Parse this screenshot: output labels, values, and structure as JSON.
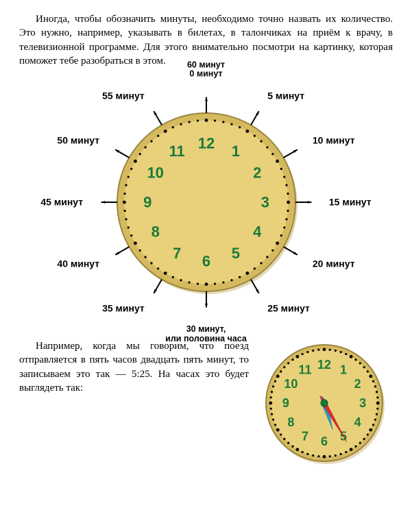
{
  "paragraph1": "Иногда, чтобы обозначить минуты, необходимо точно назвать их количество. Это нужно, например, указывать в билетах, в талончиках на приём к врачу, в телевизионной программе. Для этого внимательно посмотри на картинку, которая поможет тебе разобраться в этом.",
  "paragraph2": "Например, когда мы говорим, что поезд отправляется в пять часов двадцать пять минут, то записываем это так — 5:25. На часах это будет выглядеть так:",
  "clock_face": {
    "face_fill": "#e8d17a",
    "outer_ring": "#d4b95f",
    "border": "#9a8540",
    "shadow": "#c9b26a",
    "numeral_color": "#1a7a3a",
    "numeral_fontsize_large": 22,
    "numeral_fontsize_small": 18,
    "tick_color": "#000000",
    "numerals": [
      "12",
      "1",
      "2",
      "3",
      "4",
      "5",
      "6",
      "7",
      "8",
      "9",
      "10",
      "11"
    ],
    "radius_large": 130,
    "radius_small": 85
  },
  "minute_labels": [
    {
      "min": 0,
      "text1": "60 минут",
      "text2": "0 минут"
    },
    {
      "min": 5,
      "text": "5 минут"
    },
    {
      "min": 10,
      "text": "10 минут"
    },
    {
      "min": 15,
      "text": "15 минут"
    },
    {
      "min": 20,
      "text": "20 минут"
    },
    {
      "min": 25,
      "text": "25 минут"
    },
    {
      "min": 30,
      "text1": "30 минут,",
      "text2": "или половина часа"
    },
    {
      "min": 35,
      "text": "35 минут"
    },
    {
      "min": 40,
      "text": "40 минут"
    },
    {
      "min": 45,
      "text": "45 минут"
    },
    {
      "min": 50,
      "text": "50 минут"
    },
    {
      "min": 55,
      "text": "55 минут"
    }
  ],
  "small_clock": {
    "hour": 5,
    "minute": 25,
    "hour_hand_color": "#22a0d6",
    "minute_hand_color": "#d62f2f",
    "center_color": "#1a7a3a"
  }
}
